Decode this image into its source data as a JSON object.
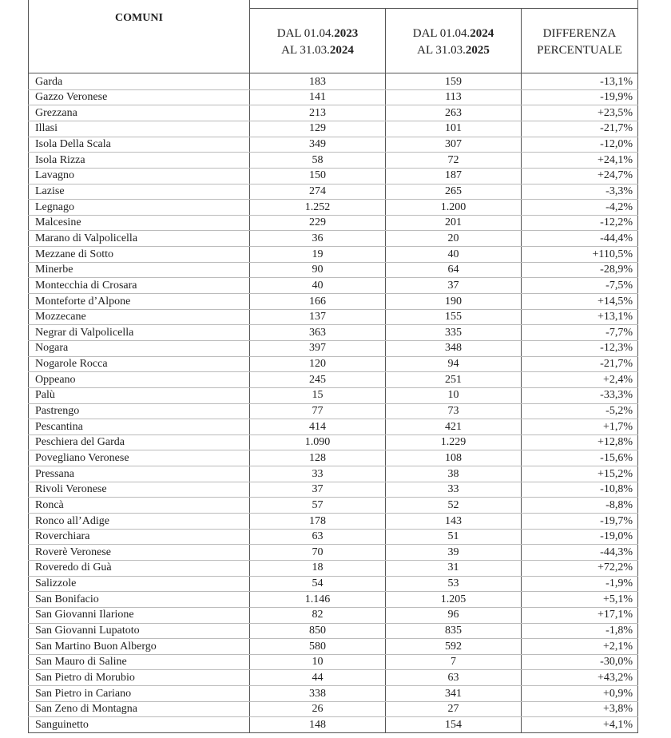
{
  "header": {
    "comuni": "COMUNI",
    "columns": [
      {
        "line1_prefix": "DAL 01.04.",
        "line1_year": "2023",
        "line2_prefix": "AL 31.03.",
        "line2_year": "2024"
      },
      {
        "line1_prefix": "DAL 01.04.",
        "line1_year": "2024",
        "line2_prefix": "AL 31.03.",
        "line2_year": "2025"
      },
      {
        "line1": "DIFFERENZA",
        "line2": "PERCENTUALE"
      }
    ]
  },
  "table": {
    "rows": [
      [
        "Garda",
        "183",
        "159",
        "-13,1%"
      ],
      [
        "Gazzo Veronese",
        "141",
        "113",
        "-19,9%"
      ],
      [
        "Grezzana",
        "213",
        "263",
        "+23,5%"
      ],
      [
        "Illasi",
        "129",
        "101",
        "-21,7%"
      ],
      [
        "Isola Della Scala",
        "349",
        "307",
        "-12,0%"
      ],
      [
        "Isola Rizza",
        "58",
        "72",
        "+24,1%"
      ],
      [
        "Lavagno",
        "150",
        "187",
        "+24,7%"
      ],
      [
        "Lazise",
        "274",
        "265",
        "-3,3%"
      ],
      [
        "Legnago",
        "1.252",
        "1.200",
        "-4,2%"
      ],
      [
        "Malcesine",
        "229",
        "201",
        "-12,2%"
      ],
      [
        "Marano di Valpolicella",
        "36",
        "20",
        "-44,4%"
      ],
      [
        "Mezzane di Sotto",
        "19",
        "40",
        "+110,5%"
      ],
      [
        "Minerbe",
        "90",
        "64",
        "-28,9%"
      ],
      [
        "Montecchia di Crosara",
        "40",
        "37",
        "-7,5%"
      ],
      [
        "Monteforte d’Alpone",
        "166",
        "190",
        "+14,5%"
      ],
      [
        "Mozzecane",
        "137",
        "155",
        "+13,1%"
      ],
      [
        "Negrar di Valpolicella",
        "363",
        "335",
        "-7,7%"
      ],
      [
        "Nogara",
        "397",
        "348",
        "-12,3%"
      ],
      [
        "Nogarole Rocca",
        "120",
        "94",
        "-21,7%"
      ],
      [
        "Oppeano",
        "245",
        "251",
        "+2,4%"
      ],
      [
        "Palù",
        "15",
        "10",
        "-33,3%"
      ],
      [
        "Pastrengo",
        "77",
        "73",
        "-5,2%"
      ],
      [
        "Pescantina",
        "414",
        "421",
        "+1,7%"
      ],
      [
        "Peschiera del Garda",
        "1.090",
        "1.229",
        "+12,8%"
      ],
      [
        "Povegliano Veronese",
        "128",
        "108",
        "-15,6%"
      ],
      [
        "Pressana",
        "33",
        "38",
        "+15,2%"
      ],
      [
        "Rivoli Veronese",
        "37",
        "33",
        "-10,8%"
      ],
      [
        "Roncà",
        "57",
        "52",
        "-8,8%"
      ],
      [
        "Ronco all’Adige",
        "178",
        "143",
        "-19,7%"
      ],
      [
        "Roverchiara",
        "63",
        "51",
        "-19,0%"
      ],
      [
        "Roverè Veronese",
        "70",
        "39",
        "-44,3%"
      ],
      [
        "Roveredo di Guà",
        "18",
        "31",
        "+72,2%"
      ],
      [
        "Salizzole",
        "54",
        "53",
        "-1,9%"
      ],
      [
        "San Bonifacio",
        "1.146",
        "1.205",
        "+5,1%"
      ],
      [
        "San Giovanni Ilarione",
        "82",
        "96",
        "+17,1%"
      ],
      [
        "San Giovanni Lupatoto",
        "850",
        "835",
        "-1,8%"
      ],
      [
        "San Martino Buon Albergo",
        "580",
        "592",
        "+2,1%"
      ],
      [
        "San Mauro di Saline",
        "10",
        "7",
        "-30,0%"
      ],
      [
        "San Pietro di Morubio",
        "44",
        "63",
        "+43,2%"
      ],
      [
        "San Pietro in Cariano",
        "338",
        "341",
        "+0,9%"
      ],
      [
        "San Zeno di Montagna",
        "26",
        "27",
        "+3,8%"
      ],
      [
        "Sanguinetto",
        "148",
        "154",
        "+4,1%"
      ]
    ]
  }
}
